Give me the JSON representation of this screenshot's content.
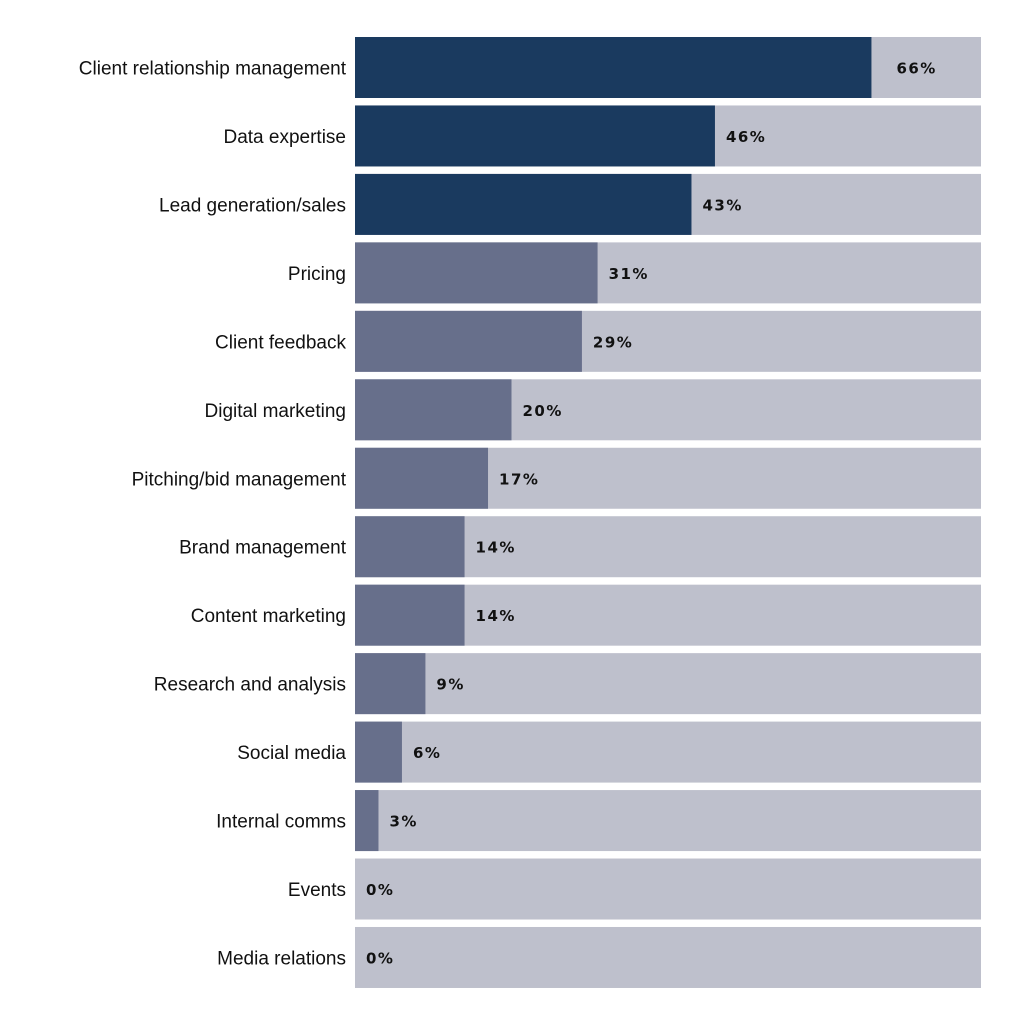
{
  "chart_data": {
    "type": "bar",
    "orientation": "horizontal",
    "title": "",
    "xlabel": "",
    "ylabel": "",
    "xlim": [
      0,
      80
    ],
    "grid": false,
    "legend": "none",
    "value_suffix": "%",
    "categories": [
      "Client relationship management",
      "Data expertise",
      "Lead generation/sales",
      "Pricing",
      "Client feedback",
      "Digital marketing",
      "Pitching/bid management",
      "Brand management",
      "Content marketing",
      "Research and analysis",
      "Social media",
      "Internal comms",
      "Events",
      "Media relations"
    ],
    "values": [
      66,
      46,
      43,
      31,
      29,
      20,
      17,
      14,
      14,
      9,
      6,
      3,
      0,
      0
    ],
    "labels": [
      "66%",
      "46%",
      "43%",
      "31%",
      "29%",
      "20%",
      "17%",
      "14%",
      "14%",
      "9%",
      "6%",
      "3%",
      "0%",
      "0%"
    ],
    "highlight_count": 3,
    "colors": {
      "highlight": "#1a3a5f",
      "bar": "#676f8b",
      "track": "#bec0cc"
    }
  }
}
